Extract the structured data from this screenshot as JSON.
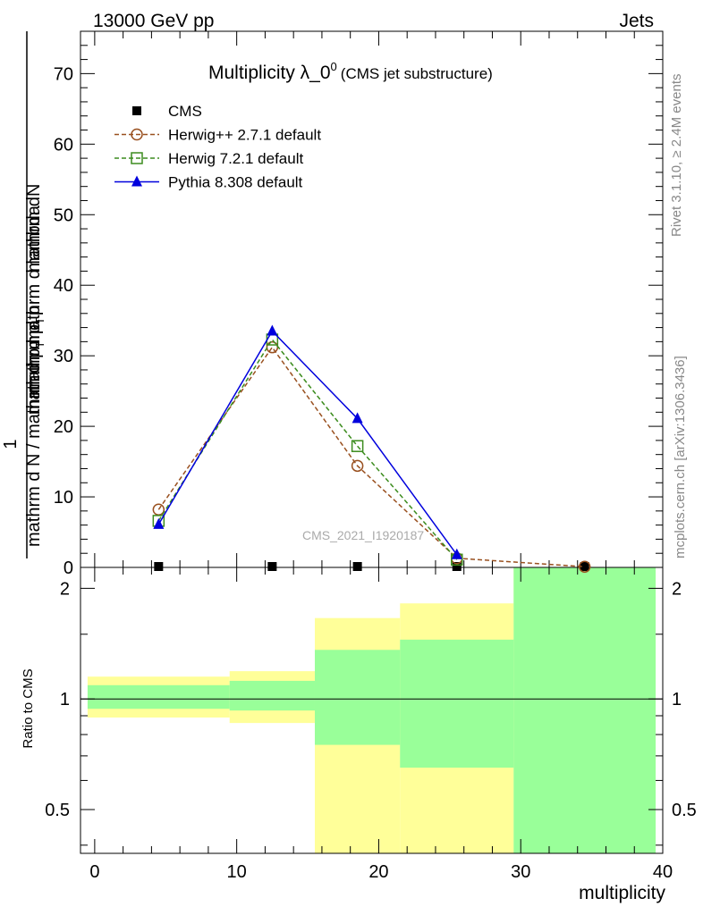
{
  "header": {
    "left": "13000 GeV pp",
    "right": "Jets"
  },
  "side_labels": {
    "rivet": "Rivet 3.1.10, ≥ 2.4M events",
    "mcplots": "mcplots.cern.ch [arXiv:1306.3436]"
  },
  "chart_data": [
    {
      "type": "line",
      "title": "Multiplicity λ_0",
      "title_superscript": "0",
      "subtitle": "(CMS jet substructure)",
      "watermark": "CMS_2021_I1920187",
      "ylabel": {
        "numerator_one": "1",
        "numerator": "mathrm dN",
        "denominator_left": "mathrm d N / mathrm d p",
        "denominator_mid": "mathrm d p",
        "denominator_right": "mathrm d lambda",
        "sub": "T",
        "sub2": "T",
        "sub_mid": "mathrm d p",
        "middle_text": "mathrm d p"
      },
      "ylabel_top_lines": [
        "mathrm dN",
        "mathrm d p",
        "mathrm d p",
        "mathrm d lambda"
      ],
      "ylim": [
        0,
        76
      ],
      "xlim": [
        -1,
        40
      ],
      "yticks": [
        0,
        10,
        20,
        30,
        40,
        50,
        60,
        70
      ],
      "legend_position": "top-left",
      "series": [
        {
          "name": "CMS",
          "color": "#000000",
          "marker": "square-filled",
          "line": "none",
          "x": [
            4.5,
            12.5,
            18.5,
            25.5,
            34.5
          ],
          "y": [
            0.05,
            0.05,
            0.05,
            0.05,
            0.05
          ]
        },
        {
          "name": "Herwig++ 2.7.1 default",
          "color": "#99501f",
          "marker": "circle-open",
          "line": "dashed",
          "x": [
            4.5,
            12.5,
            18.5,
            25.5,
            34.5
          ],
          "y": [
            8.2,
            31.2,
            14.4,
            1.3,
            0.1
          ]
        },
        {
          "name": "Herwig 7.2.1 default",
          "color": "#3c8c1e",
          "marker": "square-open",
          "line": "dashed",
          "x": [
            4.5,
            12.5,
            18.5,
            25.5
          ],
          "y": [
            6.6,
            32.3,
            17.2,
            1.1
          ]
        },
        {
          "name": "Pythia 8.308 default",
          "color": "#0000dd",
          "marker": "triangle-filled",
          "line": "solid",
          "x": [
            4.5,
            12.5,
            18.5,
            25.5
          ],
          "y": [
            6.1,
            33.5,
            21.1,
            1.8
          ]
        }
      ]
    },
    {
      "type": "area",
      "ylabel": "Ratio to CMS",
      "xlabel": "multiplicity",
      "log_y": true,
      "ylim": [
        0.38,
        2.28
      ],
      "xlim": [
        -1,
        40
      ],
      "xticks": [
        0,
        10,
        20,
        30,
        40
      ],
      "yticks": [
        0.5,
        1,
        2
      ],
      "reference_line": 1,
      "bands": [
        {
          "name": "yellow",
          "color": "#ffff99",
          "bins": [
            {
              "x": [
                -0.5,
                9.5
              ],
              "y": [
                0.89,
                1.15
              ]
            },
            {
              "x": [
                9.5,
                15.5
              ],
              "y": [
                0.86,
                1.19
              ]
            },
            {
              "x": [
                15.5,
                21.5
              ],
              "y": [
                0.37,
                1.66
              ]
            },
            {
              "x": [
                21.5,
                29.5
              ],
              "y": [
                0.37,
                1.82
              ]
            },
            {
              "x": [
                29.5,
                39.5
              ],
              "y": [
                0.37,
                2.28
              ]
            }
          ]
        },
        {
          "name": "green",
          "color": "#99ff99",
          "bins": [
            {
              "x": [
                -0.5,
                9.5
              ],
              "y": [
                0.94,
                1.09
              ]
            },
            {
              "x": [
                9.5,
                15.5
              ],
              "y": [
                0.93,
                1.12
              ]
            },
            {
              "x": [
                15.5,
                21.5
              ],
              "y": [
                0.75,
                1.36
              ]
            },
            {
              "x": [
                21.5,
                29.5
              ],
              "y": [
                0.65,
                1.45
              ]
            },
            {
              "x": [
                29.5,
                39.5
              ],
              "y": [
                0.37,
                2.28
              ]
            }
          ]
        }
      ]
    }
  ]
}
